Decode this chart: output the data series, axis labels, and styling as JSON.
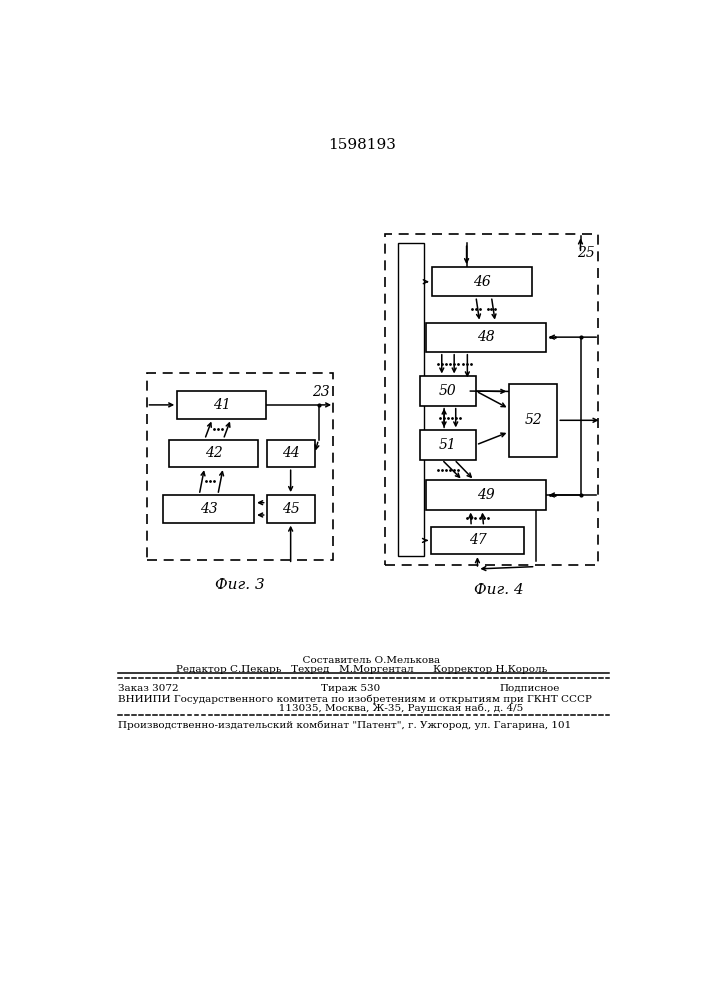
{
  "title": "1598193",
  "fig3_label": "23",
  "fig4_label": "25",
  "caption3": "Фиг. 3",
  "caption4": "Фиг. 4",
  "bottom_lines": [
    "      Составитель О.Мелькова",
    "Редактор С.Пекарь   Техред   М.Моргентал      Корректор Н.Король",
    "Заказ 3072             Тираж 530                    Подписное",
    "ВНИИПИ Государственного комитета по изобретениям и открытиям при ГКНТ СССР",
    "           113035, Москва, Ж-35, Раушская наб., д. 4/5",
    "Производственно-издательский комбинат \"Патент\", г. Ужгород, ул. Гагарина, 101"
  ]
}
